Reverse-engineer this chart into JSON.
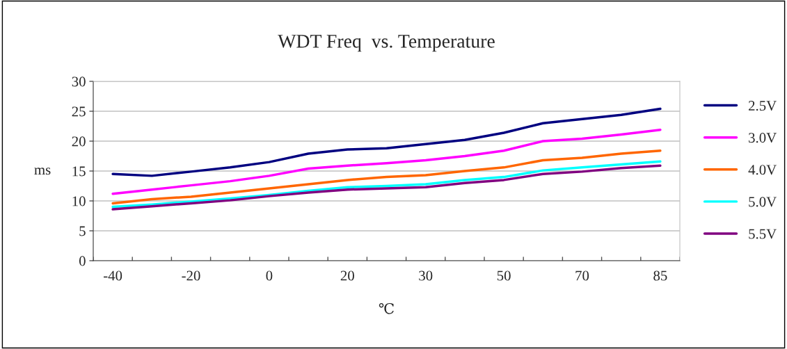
{
  "chart_data": {
    "type": "line",
    "title": "WDT Freq  vs. Temperature",
    "xlabel": "℃",
    "ylabel": "ms",
    "categories": [
      "-40",
      null,
      "-20",
      null,
      "0",
      null,
      "20",
      null,
      "30",
      null,
      "50",
      null,
      "70",
      null,
      "85"
    ],
    "ylim": [
      0,
      30
    ],
    "yticks": [
      0,
      5,
      10,
      15,
      20,
      25,
      30
    ],
    "grid": "y",
    "legend": "right",
    "marker": "none",
    "line_style": "solid",
    "series": [
      {
        "name": "2.5V",
        "color": "#000080",
        "values": [
          14.5,
          14.2,
          14.9,
          15.6,
          16.5,
          17.9,
          18.6,
          18.8,
          19.5,
          20.2,
          21.4,
          23.0,
          23.7,
          24.4,
          25.4
        ]
      },
      {
        "name": "3.0V",
        "color": "#ff00ff",
        "values": [
          11.2,
          11.9,
          12.6,
          13.3,
          14.2,
          15.4,
          15.9,
          16.3,
          16.8,
          17.5,
          18.4,
          20.0,
          20.4,
          21.1,
          21.9
        ]
      },
      {
        "name": "4.0V",
        "color": "#ff6600",
        "values": [
          9.6,
          10.3,
          10.7,
          11.4,
          12.1,
          12.8,
          13.5,
          14.0,
          14.3,
          15.0,
          15.6,
          16.8,
          17.2,
          17.9,
          18.4
        ]
      },
      {
        "name": "5.0V",
        "color": "#00ffff",
        "values": [
          9.0,
          9.4,
          9.9,
          10.4,
          11.0,
          11.7,
          12.3,
          12.5,
          12.8,
          13.5,
          14.0,
          15.1,
          15.6,
          16.1,
          16.6
        ]
      },
      {
        "name": "5.5V",
        "color": "#800080",
        "values": [
          8.6,
          9.1,
          9.6,
          10.1,
          10.8,
          11.4,
          11.9,
          12.1,
          12.3,
          13.0,
          13.5,
          14.5,
          14.9,
          15.5,
          15.9
        ]
      }
    ]
  }
}
